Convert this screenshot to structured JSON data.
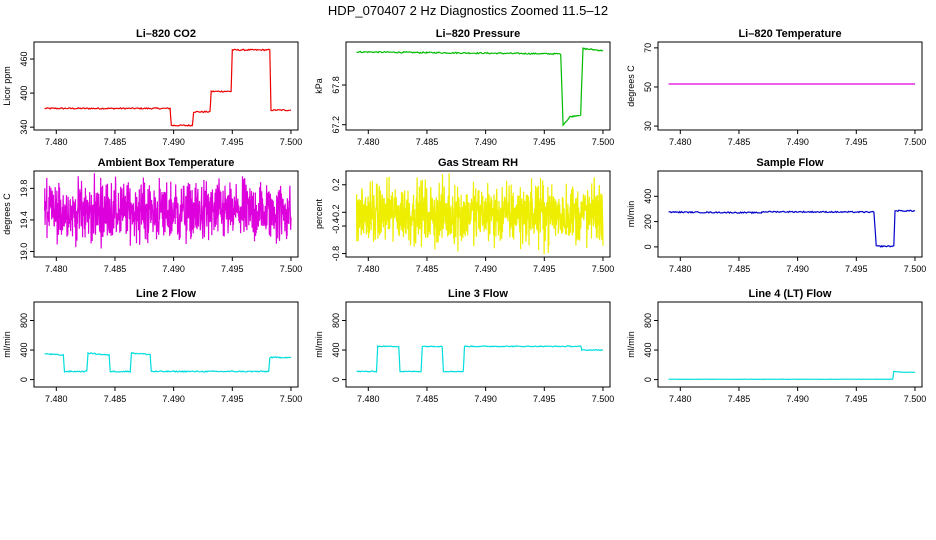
{
  "title": "HDP_070407  2 Hz Diagnostics Zoomed 11.5–12",
  "colors": {
    "red": "#ee0000",
    "green": "#00bb00",
    "magenta": "#dd00dd",
    "yellow": "#eeee00",
    "blue": "#0000cc",
    "cyan": "#00dddd"
  },
  "chart_data": [
    {
      "type": "line",
      "title": "Li–820 CO2",
      "ylabel": "Licor ppm",
      "xlim": [
        7.4781,
        7.5006
      ],
      "ylim": [
        335,
        490
      ],
      "xticks": [
        "7.480",
        "7.485",
        "7.490",
        "7.495",
        "7.500"
      ],
      "yticks": [
        "340",
        "400",
        "460"
      ],
      "color": "red",
      "noise": 1.2,
      "series": [
        {
          "x": [
            7.479,
            7.4897,
            7.4898,
            7.4916,
            7.4917,
            7.4931,
            7.4932,
            7.4949,
            7.495,
            7.4982,
            7.4983,
            7.5
          ],
          "values": [
            373,
            373,
            343,
            343,
            367,
            367,
            403,
            403,
            476,
            476,
            370,
            370
          ]
        }
      ]
    },
    {
      "type": "line",
      "title": "Li–820 Pressure",
      "ylabel": "kPa",
      "xlim": [
        7.4781,
        7.5006
      ],
      "ylim": [
        67.12,
        68.45
      ],
      "xticks": [
        "7.480",
        "7.485",
        "7.490",
        "7.495",
        "7.500"
      ],
      "yticks": [
        "67.2",
        "67.8"
      ],
      "color": "green",
      "noise": 0.01,
      "series": [
        {
          "x": [
            7.479,
            7.4964,
            7.4966,
            7.4971,
            7.4972,
            7.4981,
            7.4983,
            7.5
          ],
          "values": [
            68.3,
            68.27,
            67.2,
            67.3,
            67.32,
            67.35,
            68.35,
            68.32
          ]
        }
      ]
    },
    {
      "type": "line",
      "title": "Li–820 Temperature",
      "ylabel": "degrees C",
      "xlim": [
        7.4781,
        7.5006
      ],
      "ylim": [
        28,
        73
      ],
      "xticks": [
        "7.480",
        "7.485",
        "7.490",
        "7.495",
        "7.500"
      ],
      "yticks": [
        "30",
        "50",
        "70"
      ],
      "color": "magenta",
      "noise": 0,
      "series": [
        {
          "x": [
            7.479,
            7.5
          ],
          "values": [
            51.5,
            51.5
          ]
        }
      ]
    },
    {
      "type": "line",
      "title": "Ambient Box Temperature",
      "ylabel": "degrees C",
      "xlim": [
        7.4781,
        7.5006
      ],
      "ylim": [
        18.93,
        20.02
      ],
      "xticks": [
        "7.480",
        "7.485",
        "7.490",
        "7.495",
        "7.500"
      ],
      "yticks": [
        "19.0",
        "19.4",
        "19.8"
      ],
      "color": "magenta",
      "noise": 0,
      "series": [
        {
          "x": [
            7.479,
            7.5
          ],
          "values": [
            19.45,
            19.45
          ],
          "scatter_range": [
            19.05,
            19.95
          ]
        }
      ]
    },
    {
      "type": "line",
      "title": "Gas Stream RH",
      "ylabel": "percent",
      "xlim": [
        7.4781,
        7.5006
      ],
      "ylim": [
        -0.85,
        0.4
      ],
      "xticks": [
        "7.480",
        "7.485",
        "7.490",
        "7.495",
        "7.500"
      ],
      "yticks": [
        "-0.8",
        "-0.4",
        "-0.2",
        "0.2"
      ],
      "color": "yellow",
      "noise": 0,
      "series": [
        {
          "x": [
            7.479,
            7.5
          ],
          "values": [
            -0.25,
            -0.25
          ],
          "scatter_range": [
            -0.75,
            0.3
          ]
        }
      ]
    },
    {
      "type": "line",
      "title": "Sample Flow",
      "ylabel": "ml/min",
      "xlim": [
        7.4781,
        7.5006
      ],
      "ylim": [
        -80,
        600
      ],
      "xticks": [
        "7.480",
        "7.485",
        "7.490",
        "7.495",
        "7.500"
      ],
      "yticks": [
        "0",
        "200",
        "400"
      ],
      "color": "blue",
      "noise": 5,
      "series": [
        {
          "x": [
            7.479,
            7.4869,
            7.487,
            7.4965,
            7.4966,
            7.4967,
            7.4982,
            7.4983,
            7.5
          ],
          "values": [
            275,
            270,
            278,
            275,
            140,
            5,
            5,
            285,
            285
          ]
        }
      ]
    },
    {
      "type": "line",
      "title": "Line 2 Flow",
      "ylabel": "ml/min",
      "xlim": [
        7.4781,
        7.5006
      ],
      "ylim": [
        -100,
        1050
      ],
      "xticks": [
        "7.480",
        "7.485",
        "7.490",
        "7.495",
        "7.500"
      ],
      "yticks": [
        "0",
        "400",
        "800"
      ],
      "color": "cyan",
      "noise": 8,
      "series": [
        {
          "x": [
            7.479,
            7.4806,
            7.4807,
            7.4826,
            7.4827,
            7.4845,
            7.4846,
            7.4863,
            7.4864,
            7.488,
            7.4881,
            7.4981,
            7.4982,
            7.5
          ],
          "values": [
            350,
            330,
            110,
            110,
            360,
            330,
            110,
            110,
            360,
            340,
            110,
            110,
            300,
            300
          ]
        }
      ]
    },
    {
      "type": "line",
      "title": "Line 3 Flow",
      "ylabel": "ml/min",
      "xlim": [
        7.4781,
        7.5006
      ],
      "ylim": [
        -100,
        1050
      ],
      "xticks": [
        "7.480",
        "7.485",
        "7.490",
        "7.495",
        "7.500"
      ],
      "yticks": [
        "0",
        "400",
        "800"
      ],
      "color": "cyan",
      "noise": 6,
      "series": [
        {
          "x": [
            7.479,
            7.4807,
            7.4808,
            7.4826,
            7.4827,
            7.4845,
            7.4846,
            7.4863,
            7.4864,
            7.4881,
            7.4882,
            7.4981,
            7.4982,
            7.5
          ],
          "values": [
            110,
            110,
            450,
            450,
            110,
            110,
            450,
            450,
            110,
            110,
            450,
            450,
            400,
            400
          ]
        }
      ]
    },
    {
      "type": "line",
      "title": "Line 4 (LT) Flow",
      "ylabel": "ml/min",
      "xlim": [
        7.4781,
        7.5006
      ],
      "ylim": [
        -100,
        1050
      ],
      "xticks": [
        "7.480",
        "7.485",
        "7.490",
        "7.495",
        "7.500"
      ],
      "yticks": [
        "0",
        "400",
        "800"
      ],
      "color": "cyan",
      "noise": 2,
      "series": [
        {
          "x": [
            7.479,
            7.4981,
            7.4982,
            7.499,
            7.5
          ],
          "values": [
            5,
            5,
            110,
            100,
            100
          ]
        }
      ]
    }
  ]
}
